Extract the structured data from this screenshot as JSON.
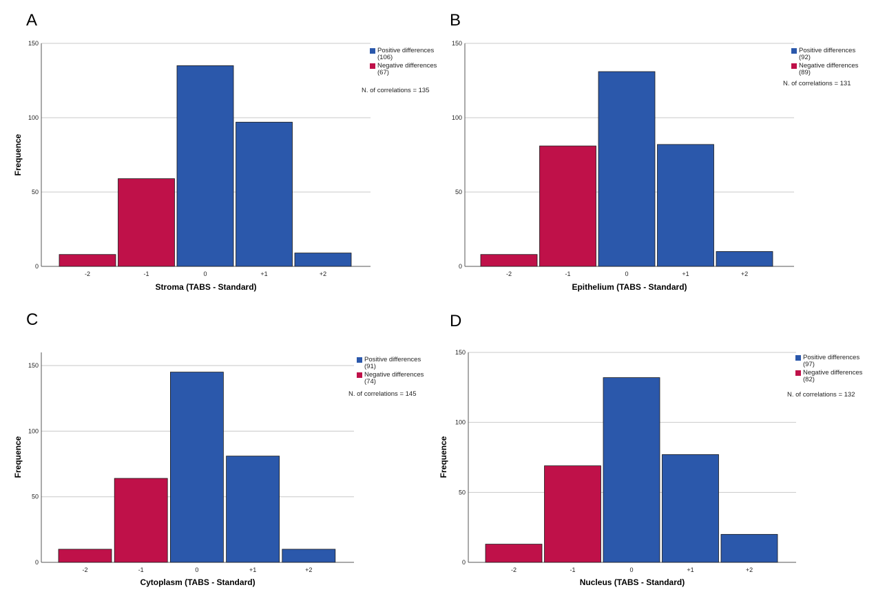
{
  "colors": {
    "positive": "#2b58ab",
    "negative": "#bf1149",
    "grid": "#c8c8c8",
    "axis": "#555555"
  },
  "chart_data": [
    {
      "panel": "A",
      "type": "bar",
      "categories": [
        "-2",
        "-1",
        "0",
        "+1",
        "+2"
      ],
      "values": [
        8,
        59,
        135,
        97,
        9
      ],
      "bar_series": [
        "negative",
        "negative",
        "positive",
        "positive",
        "positive"
      ],
      "series": [
        {
          "name": "Positive differences",
          "count": "(106)"
        },
        {
          "name": "Negative differences",
          "count": "(67)"
        }
      ],
      "annotation": "N. of correlations = 135",
      "xlabel": "Stroma (TABS - Standard)",
      "ylabel": "Frequence",
      "yticks": [
        0,
        50,
        100,
        150
      ],
      "ylim": [
        0,
        150
      ],
      "grid": true,
      "legend_position": "top-right"
    },
    {
      "panel": "B",
      "type": "bar",
      "categories": [
        "-2",
        "-1",
        "0",
        "+1",
        "+2"
      ],
      "values": [
        8,
        81,
        131,
        82,
        10
      ],
      "bar_series": [
        "negative",
        "negative",
        "positive",
        "positive",
        "positive"
      ],
      "series": [
        {
          "name": "Positive differences",
          "count": "(92)"
        },
        {
          "name": "Negative differences",
          "count": "(89)"
        }
      ],
      "annotation": "N. of correlations = 131",
      "xlabel": "Epithelium (TABS - Standard)",
      "ylabel": "",
      "yticks": [
        0,
        50,
        100,
        150
      ],
      "ylim": [
        0,
        150
      ],
      "grid": true,
      "legend_position": "top-right"
    },
    {
      "panel": "C",
      "type": "bar",
      "categories": [
        "-2",
        "-1",
        "0",
        "+1",
        "+2"
      ],
      "values": [
        10,
        64,
        145,
        81,
        10
      ],
      "bar_series": [
        "negative",
        "negative",
        "positive",
        "positive",
        "positive"
      ],
      "series": [
        {
          "name": "Positive differences",
          "count": "(91)"
        },
        {
          "name": "Negative differences",
          "count": "(74)"
        }
      ],
      "annotation": "N. of correlations = 145",
      "xlabel": "Cytoplasm (TABS - Standard)",
      "ylabel": "Frequence",
      "yticks": [
        0,
        50,
        100,
        150
      ],
      "ylim": [
        0,
        160
      ],
      "grid": true,
      "legend_position": "top-right"
    },
    {
      "panel": "D",
      "type": "bar",
      "categories": [
        "-2",
        "-1",
        "0",
        "+1",
        "+2"
      ],
      "values": [
        13,
        69,
        132,
        77,
        20
      ],
      "bar_series": [
        "negative",
        "negative",
        "positive",
        "positive",
        "positive"
      ],
      "series": [
        {
          "name": "Positive differences",
          "count": "(97)"
        },
        {
          "name": "Negative differences",
          "count": "(82)"
        }
      ],
      "annotation": "N. of correlations = 132",
      "xlabel": "Nucleus (TABS - Standard)",
      "ylabel": "Frequence",
      "yticks": [
        0,
        50,
        100,
        150
      ],
      "ylim": [
        0,
        150
      ],
      "grid": true,
      "legend_position": "top-right"
    }
  ]
}
